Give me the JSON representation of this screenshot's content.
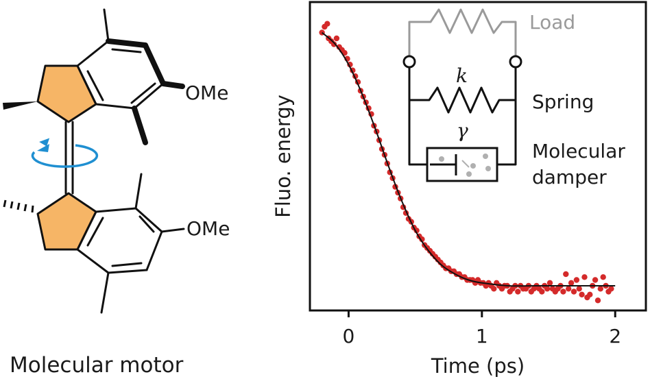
{
  "molecule": {
    "caption": "Molecular motor",
    "substituent_top": "OMe",
    "substituent_bottom": "OMe",
    "ring_fill_color": "#f6b566",
    "rotation_arrow_color": "#1f8fd1"
  },
  "chart_data": {
    "type": "scatter",
    "xlabel": "Time (ps)",
    "ylabel": "Fluo. energy",
    "xlim": [
      -0.28,
      2.22
    ],
    "ylim": [
      0.0,
      1.05
    ],
    "xticks": [
      0,
      1,
      2
    ],
    "xtick_labels": [
      "0",
      "1",
      "2"
    ],
    "show_y_ticks": false,
    "grid": false,
    "point_color": "#d42a2a",
    "fit_color": "#111111",
    "fit_curve": {
      "x": [
        -0.2,
        -0.1,
        0.0,
        0.1,
        0.2,
        0.3,
        0.4,
        0.5,
        0.6,
        0.7,
        0.8,
        0.9,
        1.0,
        1.2,
        1.4,
        1.6,
        1.8,
        2.0
      ],
      "y": [
        0.95,
        0.91,
        0.84,
        0.74,
        0.62,
        0.49,
        0.37,
        0.27,
        0.2,
        0.15,
        0.12,
        0.1,
        0.09,
        0.08,
        0.08,
        0.08,
        0.08,
        0.08
      ]
    },
    "series": [
      {
        "x": [
          -0.2,
          -0.18,
          -0.16,
          -0.15,
          -0.13,
          -0.11,
          -0.09,
          -0.07,
          -0.05,
          -0.03,
          -0.01,
          0.01,
          0.03,
          0.05,
          0.07,
          0.09,
          0.11,
          0.13,
          0.15,
          0.17,
          0.19,
          0.21,
          0.23,
          0.25,
          0.27,
          0.29,
          0.31,
          0.33,
          0.35,
          0.37,
          0.39,
          0.41,
          0.43,
          0.45,
          0.47,
          0.49,
          0.51,
          0.53,
          0.55,
          0.57,
          0.59,
          0.61,
          0.63,
          0.65,
          0.67,
          0.69,
          0.71,
          0.73,
          0.75,
          0.77,
          0.79,
          0.81,
          0.83,
          0.85,
          0.87,
          0.89,
          0.91,
          0.93,
          0.95,
          0.97,
          0.99,
          1.01,
          1.03,
          1.05,
          1.07,
          1.09,
          1.11,
          1.13,
          1.15,
          1.17,
          1.19,
          1.21,
          1.23,
          1.25,
          1.27,
          1.29,
          1.31,
          1.33,
          1.35,
          1.37,
          1.39,
          1.41,
          1.43,
          1.45,
          1.47,
          1.49,
          1.51,
          1.53,
          1.55,
          1.57,
          1.59,
          1.61,
          1.63,
          1.65,
          1.67,
          1.69,
          1.71,
          1.73,
          1.75,
          1.77,
          1.79,
          1.81,
          1.83,
          1.85,
          1.87,
          1.89,
          1.91,
          1.93,
          1.95,
          1.97
        ],
        "y": [
          0.95,
          0.97,
          0.98,
          0.93,
          0.92,
          0.91,
          0.93,
          0.9,
          0.89,
          0.88,
          0.86,
          0.84,
          0.82,
          0.8,
          0.78,
          0.75,
          0.73,
          0.71,
          0.69,
          0.67,
          0.63,
          0.61,
          0.58,
          0.55,
          0.53,
          0.5,
          0.47,
          0.45,
          0.42,
          0.4,
          0.38,
          0.35,
          0.33,
          0.31,
          0.3,
          0.28,
          0.27,
          0.25,
          0.24,
          0.22,
          0.21,
          0.2,
          0.19,
          0.18,
          0.17,
          0.16,
          0.15,
          0.14,
          0.14,
          0.13,
          0.13,
          0.12,
          0.12,
          0.11,
          0.11,
          0.1,
          0.1,
          0.1,
          0.09,
          0.1,
          0.09,
          0.09,
          0.08,
          0.09,
          0.08,
          0.07,
          0.09,
          0.08,
          0.07,
          0.08,
          0.08,
          0.06,
          0.07,
          0.08,
          0.06,
          0.08,
          0.07,
          0.07,
          0.08,
          0.06,
          0.07,
          0.08,
          0.07,
          0.06,
          0.08,
          0.07,
          0.09,
          0.07,
          0.06,
          0.07,
          0.08,
          0.06,
          0.12,
          0.07,
          0.09,
          0.06,
          0.1,
          0.07,
          0.05,
          0.11,
          0.04,
          0.05,
          0.08,
          0.1,
          0.03,
          0.07,
          0.11,
          0.08,
          0.06,
          0.07
        ]
      }
    ]
  },
  "inset": {
    "load_label": "Load",
    "spring_symbol": "k",
    "spring_label": "Spring",
    "damper_symbol": "γ",
    "damper_label_line1": "Molecular",
    "damper_label_line2": "damper",
    "load_color": "#9a9a9a"
  }
}
